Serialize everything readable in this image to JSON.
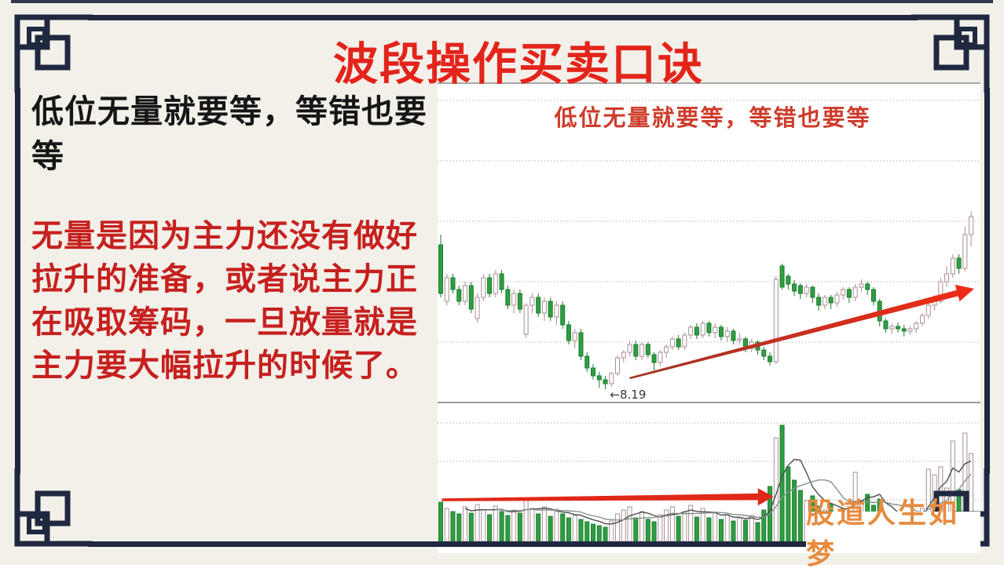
{
  "page": {
    "bg": "#f2f0e9",
    "frame_color": "#202840"
  },
  "header": {
    "title": "波段操作买卖口诀",
    "color": "#e3241b"
  },
  "left_panel": {
    "lead_text": "低位无量就要等，等错也要等",
    "lead_color": "#161616",
    "body_text": "无量是因为主力还没有做好拉升的准备，或者说主力正在吸取筹码，一旦放量就是主力要大幅拉升的时候了。",
    "body_color": "#c6201e"
  },
  "watermark": {
    "text": "股道人生如梦",
    "color": "#e78b3e",
    "bg": "#ffffff"
  },
  "chart_data": {
    "type": "candlestick",
    "title": "低位无量就要等，等错也要等",
    "title_color": "#ce3c2b",
    "legend_position": "none",
    "grid": "dotted",
    "ylim": [
      8.03,
      12.1
    ],
    "gridline_prices": [
      11.87,
      11.1,
      10.33,
      9.56,
      8.79
    ],
    "vol_ylim": [
      0,
      180
    ],
    "vol_gridlines": [
      151,
      102,
      53
    ],
    "low_point_label": "8.19",
    "low_point_index": 27,
    "colors": {
      "up_fill": "#ffffff",
      "up_stroke": "#a98e92",
      "down_fill": "#2f9e42",
      "down_stroke": "#1d7c2e",
      "arrow_dark": "#9f3527",
      "arrow_bright": "#ef2c17",
      "vol_ma5": "#4d4d4d",
      "vol_ma10": "#87918e",
      "grid": "#999999",
      "label": "#3a3a3a"
    },
    "candles": [
      [
        10.03,
        10.16,
        9.36,
        9.41
      ],
      [
        9.31,
        9.66,
        9.26,
        9.61
      ],
      [
        9.61,
        9.66,
        9.41,
        9.46
      ],
      [
        9.46,
        9.51,
        9.26,
        9.31
      ],
      [
        9.31,
        9.56,
        9.26,
        9.51
      ],
      [
        9.51,
        9.56,
        9.16,
        9.21
      ],
      [
        9.09,
        9.41,
        9.04,
        9.36
      ],
      [
        9.36,
        9.66,
        9.31,
        9.61
      ],
      [
        9.61,
        9.66,
        9.36,
        9.41
      ],
      [
        9.41,
        9.71,
        9.36,
        9.66
      ],
      [
        9.66,
        9.71,
        9.41,
        9.46
      ],
      [
        9.46,
        9.51,
        9.21,
        9.26
      ],
      [
        9.26,
        9.46,
        9.16,
        9.41
      ],
      [
        9.41,
        9.46,
        9.16,
        9.21
      ],
      [
        8.89,
        9.29,
        8.84,
        9.26
      ],
      [
        9.26,
        9.41,
        9.16,
        9.36
      ],
      [
        9.36,
        9.41,
        9.11,
        9.16
      ],
      [
        9.16,
        9.36,
        9.06,
        9.31
      ],
      [
        9.31,
        9.36,
        9.06,
        9.11
      ],
      [
        9.11,
        9.31,
        9.01,
        9.26
      ],
      [
        9.26,
        9.31,
        8.96,
        9.01
      ],
      [
        9.01,
        9.06,
        8.76,
        8.81
      ],
      [
        8.81,
        8.96,
        8.71,
        8.91
      ],
      [
        8.91,
        8.96,
        8.56,
        8.61
      ],
      [
        8.61,
        8.66,
        8.41,
        8.46
      ],
      [
        8.46,
        8.51,
        8.31,
        8.36
      ],
      [
        8.36,
        8.41,
        8.21,
        8.31
      ],
      [
        8.31,
        8.36,
        8.19,
        8.26
      ],
      [
        8.26,
        8.41,
        8.22,
        8.39
      ],
      [
        8.39,
        8.62,
        8.36,
        8.59
      ],
      [
        8.59,
        8.69,
        8.53,
        8.66
      ],
      [
        8.66,
        8.81,
        8.61,
        8.76
      ],
      [
        8.76,
        8.81,
        8.56,
        8.61
      ],
      [
        8.61,
        8.79,
        8.56,
        8.76
      ],
      [
        8.76,
        8.79,
        8.59,
        8.63
      ],
      [
        8.63,
        8.66,
        8.43,
        8.53
      ],
      [
        8.53,
        8.69,
        8.49,
        8.66
      ],
      [
        8.66,
        8.76,
        8.59,
        8.73
      ],
      [
        8.73,
        8.86,
        8.69,
        8.83
      ],
      [
        8.83,
        8.88,
        8.69,
        8.73
      ],
      [
        8.73,
        8.91,
        8.69,
        8.88
      ],
      [
        8.88,
        9.01,
        8.83,
        8.98
      ],
      [
        8.98,
        9.03,
        8.83,
        8.88
      ],
      [
        8.88,
        9.06,
        8.84,
        9.03
      ],
      [
        9.03,
        9.06,
        8.86,
        8.91
      ],
      [
        8.91,
        9.03,
        8.84,
        8.98
      ],
      [
        8.98,
        9.01,
        8.81,
        8.86
      ],
      [
        8.86,
        8.98,
        8.79,
        8.93
      ],
      [
        8.93,
        8.96,
        8.76,
        8.81
      ],
      [
        8.81,
        8.91,
        8.76,
        8.83
      ],
      [
        8.83,
        8.86,
        8.66,
        8.71
      ],
      [
        8.71,
        8.83,
        8.66,
        8.79
      ],
      [
        8.79,
        8.81,
        8.63,
        8.69
      ],
      [
        8.69,
        8.73,
        8.56,
        8.61
      ],
      [
        8.61,
        8.66,
        8.49,
        8.54
      ],
      [
        8.54,
        9.63,
        8.51,
        9.59
      ],
      [
        9.76,
        9.79,
        9.46,
        9.49
      ],
      [
        9.63,
        9.66,
        9.46,
        9.53
      ],
      [
        9.53,
        9.58,
        9.38,
        9.44
      ],
      [
        9.51,
        9.54,
        9.34,
        9.41
      ],
      [
        9.41,
        9.53,
        9.36,
        9.49
      ],
      [
        9.49,
        9.51,
        9.29,
        9.36
      ],
      [
        9.36,
        9.41,
        9.19,
        9.26
      ],
      [
        9.26,
        9.39,
        9.21,
        9.36
      ],
      [
        9.36,
        9.39,
        9.21,
        9.29
      ],
      [
        9.29,
        9.43,
        9.24,
        9.39
      ],
      [
        9.39,
        9.49,
        9.33,
        9.46
      ],
      [
        9.46,
        9.49,
        9.29,
        9.36
      ],
      [
        9.36,
        9.53,
        9.31,
        9.49
      ],
      [
        9.49,
        9.59,
        9.43,
        9.53
      ],
      [
        9.53,
        9.56,
        9.39,
        9.46
      ],
      [
        9.46,
        9.49,
        9.26,
        9.31
      ],
      [
        9.31,
        9.34,
        8.99,
        9.06
      ],
      [
        9.06,
        9.09,
        8.91,
        8.96
      ],
      [
        8.96,
        9.03,
        8.89,
        8.99
      ],
      [
        8.99,
        9.04,
        8.91,
        8.96
      ],
      [
        8.96,
        9.01,
        8.86,
        8.93
      ],
      [
        8.93,
        8.99,
        8.88,
        8.96
      ],
      [
        8.96,
        9.06,
        8.91,
        9.03
      ],
      [
        9.03,
        9.16,
        8.99,
        9.13
      ],
      [
        9.13,
        9.29,
        9.09,
        9.26
      ],
      [
        9.26,
        9.39,
        9.19,
        9.31
      ],
      [
        9.31,
        9.61,
        9.28,
        9.56
      ],
      [
        9.56,
        9.76,
        9.49,
        9.66
      ],
      [
        9.66,
        9.91,
        9.61,
        9.86
      ],
      [
        9.86,
        9.91,
        9.66,
        9.73
      ],
      [
        9.73,
        10.26,
        9.69,
        10.16
      ],
      [
        10.16,
        10.46,
        10.01,
        10.39
      ]
    ],
    "volumes": [
      50,
      42,
      38,
      35,
      44,
      36,
      47,
      40,
      34,
      45,
      38,
      33,
      40,
      36,
      55,
      42,
      35,
      44,
      32,
      41,
      35,
      30,
      33,
      28,
      25,
      22,
      20,
      18,
      26,
      35,
      40,
      44,
      30,
      38,
      28,
      25,
      34,
      40,
      44,
      32,
      38,
      46,
      31,
      42,
      30,
      36,
      28,
      34,
      26,
      30,
      27,
      33,
      24,
      40,
      70,
      132,
      148,
      95,
      78,
      65,
      52,
      58,
      45,
      40,
      48,
      36,
      42,
      38,
      88,
      52,
      60,
      46,
      54,
      34,
      27,
      24,
      29,
      25,
      34,
      42,
      92,
      85,
      95,
      68,
      128,
      66,
      138,
      112
    ],
    "annotations": [
      {
        "type": "arrow",
        "pane": "price",
        "from_index": 31,
        "from_price": 8.33,
        "to_index": 87.5,
        "to_price": 9.47
      },
      {
        "type": "arrow",
        "pane": "volume",
        "from_index": 0.2,
        "from_value": 53,
        "to_index": 54.6,
        "to_value": 57
      },
      {
        "type": "label",
        "pane": "price",
        "index": 27.5,
        "price": 8.12,
        "text": "8.19",
        "arrow": "left"
      }
    ]
  }
}
